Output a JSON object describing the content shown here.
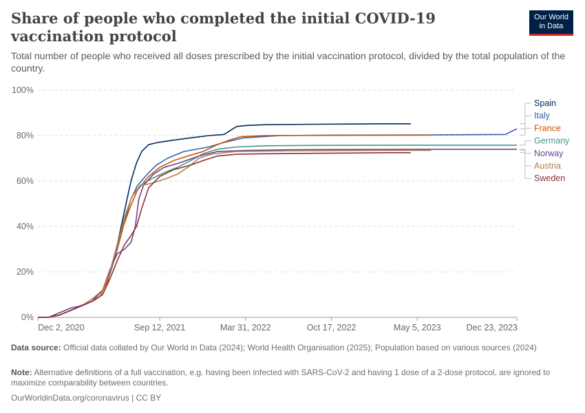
{
  "header": {
    "title": "Share of people who completed the initial COVID-19 vaccination protocol",
    "subtitle": "Total number of people who received all doses prescribed by the initial vaccination protocol, divided by the total population of the country.",
    "logo_line1": "Our World",
    "logo_line2": "in Data"
  },
  "footer": {
    "source_label": "Data source:",
    "source_text": "Official data collated by Our World in Data (2024); World Health Organisation (2025); Population based on various sources (2024)",
    "note_label": "Note:",
    "note_text": "Alternative definitions of a full vaccination, e.g. having been infected with SARS-CoV-2 and having 1 dose of a 2-dose protocol, are ignored to maximize comparability between countries.",
    "url_text": "OurWorldinData.org/coronavirus | CC BY"
  },
  "chart_data": {
    "type": "line",
    "title": "Share of people who completed the initial COVID-19 vaccination protocol",
    "xlabel": "",
    "ylabel": "",
    "x_start": "2020-12-02",
    "x_end": "2023-12-23",
    "x_ticks": [
      {
        "date": "2020-12-02",
        "label": "Dec 2, 2020"
      },
      {
        "date": "2021-09-12",
        "label": "Sep 12, 2021"
      },
      {
        "date": "2022-03-31",
        "label": "Mar 31, 2022"
      },
      {
        "date": "2022-10-17",
        "label": "Oct 17, 2022"
      },
      {
        "date": "2023-05-05",
        "label": "May 5, 2023"
      },
      {
        "date": "2023-12-23",
        "label": "Dec 23, 2023"
      }
    ],
    "ylim": [
      0,
      100
    ],
    "y_ticks": [
      0,
      20,
      40,
      60,
      80,
      100
    ],
    "y_tick_labels": [
      "0%",
      "20%",
      "40%",
      "60%",
      "80%",
      "100%"
    ],
    "grid": true,
    "legend": "right",
    "series": [
      {
        "name": "Spain",
        "color": "#00295b",
        "points": [
          [
            "2020-12-02",
            0
          ],
          [
            "2020-12-27",
            0
          ],
          [
            "2021-01-21",
            1
          ],
          [
            "2021-02-16",
            3
          ],
          [
            "2021-03-13",
            5
          ],
          [
            "2021-04-07",
            7
          ],
          [
            "2021-05-02",
            12
          ],
          [
            "2021-05-19",
            20
          ],
          [
            "2021-06-05",
            32
          ],
          [
            "2021-06-22",
            47
          ],
          [
            "2021-07-07",
            60
          ],
          [
            "2021-07-20",
            68
          ],
          [
            "2021-08-01",
            73
          ],
          [
            "2021-08-17",
            76
          ],
          [
            "2021-09-08",
            77
          ],
          [
            "2021-10-14",
            78
          ],
          [
            "2021-11-23",
            79
          ],
          [
            "2022-01-04",
            80
          ],
          [
            "2022-02-09",
            80.5
          ],
          [
            "2022-02-21",
            82
          ],
          [
            "2022-03-10",
            84
          ],
          [
            "2022-04-04",
            84.5
          ],
          [
            "2022-05-14",
            84.8
          ],
          [
            "2022-09-11",
            85
          ],
          [
            "2023-02-28",
            85.2
          ],
          [
            "2023-04-20",
            85.2
          ]
        ]
      },
      {
        "name": "Italy",
        "color": "#3360a9",
        "points": [
          [
            "2020-12-02",
            0
          ],
          [
            "2020-12-27",
            0
          ],
          [
            "2021-01-21",
            1
          ],
          [
            "2021-02-16",
            3
          ],
          [
            "2021-03-13",
            5
          ],
          [
            "2021-04-07",
            7
          ],
          [
            "2021-05-02",
            12
          ],
          [
            "2021-05-19",
            19
          ],
          [
            "2021-06-05",
            30
          ],
          [
            "2021-06-22",
            42
          ],
          [
            "2021-07-07",
            52
          ],
          [
            "2021-07-22",
            58
          ],
          [
            "2021-08-14",
            63
          ],
          [
            "2021-09-04",
            67
          ],
          [
            "2021-09-30",
            70
          ],
          [
            "2021-11-07",
            73
          ],
          [
            "2022-01-04",
            75
          ],
          [
            "2022-02-09",
            77
          ],
          [
            "2022-03-26",
            79
          ],
          [
            "2022-06-19",
            80
          ],
          [
            "2022-10-29",
            80.2
          ],
          [
            "2023-05-26",
            80.3
          ],
          [
            "2023-11-26",
            80.5
          ],
          [
            "2023-12-23",
            83
          ]
        ]
      },
      {
        "name": "France",
        "color": "#ca5200",
        "points": [
          [
            "2020-12-02",
            0
          ],
          [
            "2020-12-27",
            0
          ],
          [
            "2021-01-21",
            1
          ],
          [
            "2021-02-16",
            3
          ],
          [
            "2021-03-13",
            5
          ],
          [
            "2021-04-07",
            7
          ],
          [
            "2021-04-25",
            9
          ],
          [
            "2021-05-14",
            16
          ],
          [
            "2021-06-01",
            28
          ],
          [
            "2021-06-19",
            40
          ],
          [
            "2021-07-04",
            48
          ],
          [
            "2021-07-22",
            56
          ],
          [
            "2021-08-17",
            62
          ],
          [
            "2021-09-12",
            66
          ],
          [
            "2021-10-14",
            69
          ],
          [
            "2021-11-16",
            71
          ],
          [
            "2021-12-22",
            73
          ],
          [
            "2022-01-24",
            76
          ],
          [
            "2022-02-21",
            78
          ],
          [
            "2022-03-19",
            79.5
          ],
          [
            "2022-05-14",
            80
          ],
          [
            "2022-09-11",
            80.1
          ],
          [
            "2023-05-26",
            80.2
          ],
          [
            "2023-06-02",
            80.2
          ]
        ]
      },
      {
        "name": "Germany",
        "color": "#3d9982",
        "points": [
          [
            "2020-12-02",
            0
          ],
          [
            "2020-12-27",
            0
          ],
          [
            "2021-01-21",
            1
          ],
          [
            "2021-02-16",
            3
          ],
          [
            "2021-03-13",
            5
          ],
          [
            "2021-04-07",
            7
          ],
          [
            "2021-05-02",
            12
          ],
          [
            "2021-05-19",
            20
          ],
          [
            "2021-06-05",
            32
          ],
          [
            "2021-06-22",
            44
          ],
          [
            "2021-07-09",
            53
          ],
          [
            "2021-07-28",
            58
          ],
          [
            "2021-08-24",
            61
          ],
          [
            "2021-09-26",
            64
          ],
          [
            "2021-10-23",
            66
          ],
          [
            "2021-11-23",
            69
          ],
          [
            "2021-12-22",
            72
          ],
          [
            "2022-01-24",
            74
          ],
          [
            "2022-03-10",
            75
          ],
          [
            "2022-05-14",
            75.5
          ],
          [
            "2022-09-11",
            75.7
          ],
          [
            "2023-05-26",
            75.8
          ],
          [
            "2023-12-23",
            75.8
          ]
        ]
      },
      {
        "name": "Norway",
        "color": "#6d3e91",
        "points": [
          [
            "2020-12-02",
            0
          ],
          [
            "2020-12-27",
            0
          ],
          [
            "2021-01-21",
            2
          ],
          [
            "2021-02-16",
            4
          ],
          [
            "2021-03-10",
            5
          ],
          [
            "2021-04-07",
            7
          ],
          [
            "2021-05-02",
            12
          ],
          [
            "2021-05-19",
            21
          ],
          [
            "2021-06-05",
            28
          ],
          [
            "2021-06-22",
            30
          ],
          [
            "2021-07-07",
            33
          ],
          [
            "2021-07-17",
            40
          ],
          [
            "2021-07-25",
            52
          ],
          [
            "2021-08-05",
            58
          ],
          [
            "2021-08-28",
            63
          ],
          [
            "2021-09-22",
            66
          ],
          [
            "2021-10-28",
            68
          ],
          [
            "2021-12-12",
            71
          ],
          [
            "2022-01-24",
            73
          ],
          [
            "2022-04-04",
            73.5
          ],
          [
            "2022-07-17",
            73.8
          ],
          [
            "2023-05-26",
            74
          ],
          [
            "2023-12-23",
            74
          ]
        ]
      },
      {
        "name": "Austria",
        "color": "#b0804f",
        "points": [
          [
            "2020-12-02",
            0
          ],
          [
            "2020-12-27",
            0
          ],
          [
            "2021-01-21",
            1
          ],
          [
            "2021-02-16",
            3
          ],
          [
            "2021-03-13",
            5
          ],
          [
            "2021-04-07",
            8
          ],
          [
            "2021-05-02",
            12
          ],
          [
            "2021-05-19",
            20
          ],
          [
            "2021-06-05",
            32
          ],
          [
            "2021-06-22",
            44
          ],
          [
            "2021-07-09",
            53
          ],
          [
            "2021-07-28",
            58
          ],
          [
            "2021-08-24",
            59
          ],
          [
            "2021-09-26",
            61
          ],
          [
            "2021-10-23",
            63
          ],
          [
            "2021-11-16",
            66
          ],
          [
            "2021-12-12",
            70
          ],
          [
            "2022-01-14",
            72
          ],
          [
            "2022-03-10",
            73
          ],
          [
            "2022-07-17",
            73.3
          ],
          [
            "2023-02-16",
            73.5
          ],
          [
            "2023-06-06",
            73.5
          ]
        ]
      },
      {
        "name": "Sweden",
        "color": "#883039",
        "points": [
          [
            "2020-12-02",
            0
          ],
          [
            "2020-12-27",
            0
          ],
          [
            "2021-01-21",
            1
          ],
          [
            "2021-02-16",
            3
          ],
          [
            "2021-03-13",
            5
          ],
          [
            "2021-04-07",
            7
          ],
          [
            "2021-05-02",
            10
          ],
          [
            "2021-05-19",
            17
          ],
          [
            "2021-06-05",
            25
          ],
          [
            "2021-06-22",
            32
          ],
          [
            "2021-07-07",
            36
          ],
          [
            "2021-07-20",
            40
          ],
          [
            "2021-08-01",
            48
          ],
          [
            "2021-08-17",
            57
          ],
          [
            "2021-09-12",
            62
          ],
          [
            "2021-10-14",
            65
          ],
          [
            "2021-11-23",
            67
          ],
          [
            "2021-12-22",
            69
          ],
          [
            "2022-01-24",
            71
          ],
          [
            "2022-03-10",
            71.8
          ],
          [
            "2022-05-14",
            72
          ],
          [
            "2022-09-11",
            72.2
          ],
          [
            "2023-02-28",
            72.5
          ],
          [
            "2023-04-20",
            72.5
          ]
        ]
      }
    ]
  }
}
